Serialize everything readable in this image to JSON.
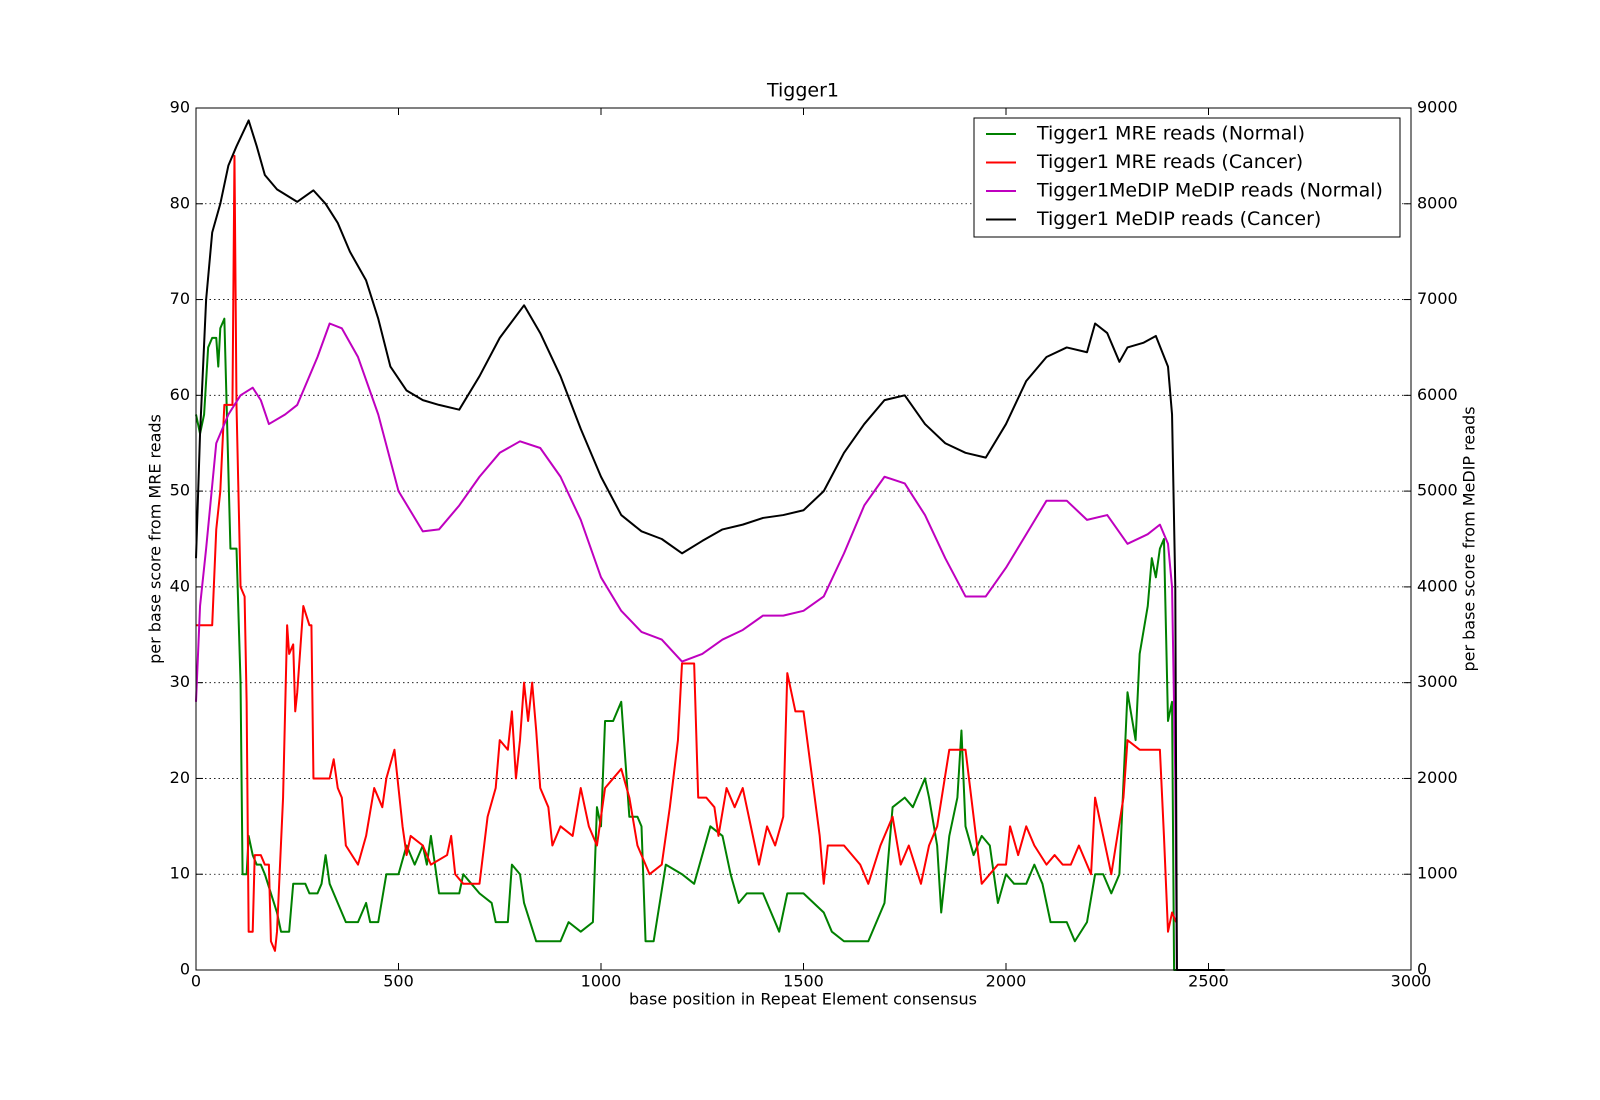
{
  "chart_data": {
    "type": "line",
    "title": "Tigger1",
    "xlabel": "base position in Repeat Element consensus",
    "ylabel": "per base score from MRE reads",
    "y2label": "per base score from MeDIP reads",
    "xlim": [
      0,
      3000
    ],
    "xticks": [
      0,
      500,
      1000,
      1500,
      2000,
      2500,
      3000
    ],
    "ylim": [
      0,
      90
    ],
    "yticks": [
      0,
      10,
      20,
      30,
      40,
      50,
      60,
      70,
      80,
      90
    ],
    "y2lim": [
      0,
      9000
    ],
    "y2ticks": [
      0,
      1000,
      2000,
      3000,
      4000,
      5000,
      6000,
      7000,
      8000,
      9000
    ],
    "grid": true,
    "legend": "upper right",
    "series": [
      {
        "name": "Tigger1 MRE reads (Normal)",
        "color": "#008000",
        "x": [
          0,
          10,
          20,
          30,
          40,
          50,
          55,
          60,
          70,
          75,
          85,
          100,
          110,
          115,
          125,
          130,
          140,
          150,
          160,
          170,
          200,
          210,
          230,
          240,
          270,
          280,
          300,
          310,
          320,
          330,
          350,
          370,
          400,
          420,
          430,
          450,
          470,
          500,
          520,
          540,
          560,
          570,
          580,
          600,
          650,
          660,
          680,
          700,
          730,
          740,
          770,
          780,
          800,
          810,
          840,
          900,
          920,
          950,
          980,
          990,
          1000,
          1010,
          1030,
          1050,
          1070,
          1090,
          1100,
          1110,
          1130,
          1160,
          1200,
          1230,
          1250,
          1270,
          1300,
          1320,
          1340,
          1360,
          1400,
          1420,
          1440,
          1460,
          1500,
          1550,
          1570,
          1600,
          1660,
          1680,
          1700,
          1720,
          1750,
          1770,
          1790,
          1800,
          1810,
          1830,
          1840,
          1860,
          1880,
          1890,
          1900,
          1920,
          1940,
          1960,
          1980,
          2000,
          2020,
          2050,
          2070,
          2090,
          2110,
          2150,
          2170,
          2200,
          2220,
          2240,
          2260,
          2280,
          2300,
          2320,
          2330,
          2350,
          2360,
          2370,
          2380,
          2390,
          2400,
          2410,
          2415,
          2540
        ],
        "values": [
          58,
          56,
          58,
          65,
          66,
          66,
          63,
          67,
          68,
          60,
          44,
          44,
          30,
          10,
          10,
          14,
          12,
          11,
          11,
          10,
          6,
          4,
          4,
          9,
          9,
          8,
          8,
          9,
          12,
          9,
          7,
          5,
          5,
          7,
          5,
          5,
          10,
          10,
          13,
          11,
          13,
          11,
          14,
          8,
          8,
          10,
          9,
          8,
          7,
          5,
          5,
          11,
          10,
          7,
          3,
          3,
          5,
          4,
          5,
          17,
          15,
          26,
          26,
          28,
          16,
          16,
          15,
          3,
          3,
          11,
          10,
          9,
          12,
          15,
          14,
          10,
          7,
          8,
          8,
          6,
          4,
          8,
          8,
          6,
          4,
          3,
          3,
          5,
          7,
          17,
          18,
          17,
          19,
          20,
          18,
          13,
          6,
          14,
          18,
          25,
          15,
          12,
          14,
          13,
          7,
          10,
          9,
          9,
          11,
          9,
          5,
          5,
          3,
          5,
          10,
          10,
          8,
          10,
          29,
          24,
          33,
          38,
          43,
          41,
          44,
          45,
          26,
          28,
          0,
          0
        ]
      },
      {
        "name": "Tigger1 MRE reads (Cancer)",
        "color": "#ff0000",
        "x": [
          0,
          40,
          50,
          60,
          70,
          90,
          95,
          100,
          110,
          120,
          125,
          130,
          140,
          145,
          160,
          170,
          180,
          185,
          195,
          200,
          215,
          225,
          230,
          240,
          245,
          250,
          265,
          280,
          285,
          290,
          330,
          340,
          350,
          360,
          370,
          400,
          420,
          440,
          460,
          470,
          490,
          510,
          520,
          530,
          560,
          580,
          620,
          630,
          640,
          660,
          700,
          720,
          740,
          750,
          770,
          780,
          790,
          800,
          810,
          820,
          830,
          840,
          850,
          870,
          880,
          900,
          930,
          950,
          970,
          990,
          1010,
          1030,
          1050,
          1070,
          1090,
          1120,
          1150,
          1170,
          1190,
          1200,
          1230,
          1240,
          1260,
          1280,
          1290,
          1310,
          1330,
          1350,
          1380,
          1390,
          1410,
          1430,
          1450,
          1460,
          1480,
          1500,
          1540,
          1550,
          1560,
          1600,
          1640,
          1660,
          1690,
          1720,
          1740,
          1760,
          1790,
          1810,
          1830,
          1860,
          1900,
          1920,
          1940,
          1980,
          2000,
          2010,
          2030,
          2050,
          2070,
          2100,
          2120,
          2140,
          2160,
          2180,
          2210,
          2220,
          2240,
          2260,
          2290,
          2300,
          2330,
          2360,
          2380,
          2390,
          2400,
          2410,
          2420
        ],
        "values": [
          36,
          36,
          46,
          50,
          59,
          59,
          85,
          59,
          40,
          39,
          28,
          4,
          4,
          12,
          12,
          11,
          11,
          3,
          2,
          4,
          18,
          36,
          33,
          34,
          27,
          29,
          38,
          36,
          36,
          20,
          20,
          22,
          19,
          18,
          13,
          11,
          14,
          19,
          17,
          20,
          23,
          15,
          12,
          14,
          13,
          11,
          12,
          14,
          10,
          9,
          9,
          16,
          19,
          24,
          23,
          27,
          20,
          24,
          30,
          26,
          30,
          25,
          19,
          17,
          13,
          15,
          14,
          19,
          15,
          13,
          19,
          20,
          21,
          18,
          13,
          10,
          11,
          17,
          24,
          32,
          32,
          18,
          18,
          17,
          14,
          19,
          17,
          19,
          13,
          11,
          15,
          13,
          16,
          31,
          27,
          27,
          14,
          9,
          13,
          13,
          11,
          9,
          13,
          16,
          11,
          13,
          9,
          13,
          15,
          23,
          23,
          16,
          9,
          11,
          11,
          15,
          12,
          15,
          13,
          11,
          12,
          11,
          11,
          13,
          10,
          18,
          14,
          10,
          18,
          24,
          23,
          23,
          23,
          14,
          4,
          6,
          5
        ]
      },
      {
        "name": "Tigger1MeDIP MeDIP reads (Normal)",
        "color": "#bf00bf",
        "axis": "y2",
        "x": [
          0,
          10,
          25,
          50,
          80,
          110,
          140,
          160,
          180,
          220,
          250,
          300,
          330,
          360,
          400,
          450,
          500,
          560,
          600,
          650,
          700,
          750,
          800,
          850,
          900,
          950,
          1000,
          1050,
          1100,
          1150,
          1200,
          1250,
          1300,
          1350,
          1400,
          1450,
          1500,
          1550,
          1600,
          1650,
          1700,
          1750,
          1800,
          1850,
          1900,
          1950,
          2000,
          2050,
          2100,
          2150,
          2200,
          2250,
          2300,
          2350,
          2380,
          2400,
          2410,
          2418,
          2422
        ],
        "values": [
          2800,
          3800,
          4400,
          5500,
          5800,
          6000,
          6080,
          5950,
          5700,
          5800,
          5900,
          6400,
          6750,
          6700,
          6400,
          5800,
          5000,
          4580,
          4600,
          4850,
          5150,
          5400,
          5520,
          5450,
          5150,
          4700,
          4100,
          3750,
          3530,
          3450,
          3220,
          3300,
          3450,
          3550,
          3700,
          3700,
          3750,
          3900,
          4350,
          4850,
          5150,
          5080,
          4750,
          4300,
          3900,
          3900,
          4200,
          4550,
          4900,
          4900,
          4700,
          4750,
          4450,
          4550,
          4650,
          4450,
          4000,
          2000,
          0
        ]
      },
      {
        "name": "Tigger1 MeDIP reads (Cancer)",
        "color": "#000000",
        "axis": "y2",
        "x": [
          0,
          10,
          25,
          40,
          60,
          80,
          100,
          130,
          150,
          170,
          200,
          250,
          290,
          320,
          350,
          380,
          420,
          450,
          480,
          520,
          560,
          600,
          650,
          700,
          750,
          810,
          850,
          900,
          950,
          1000,
          1050,
          1100,
          1150,
          1200,
          1250,
          1300,
          1350,
          1400,
          1450,
          1500,
          1550,
          1600,
          1650,
          1700,
          1750,
          1800,
          1850,
          1900,
          1950,
          2000,
          2050,
          2100,
          2150,
          2200,
          2220,
          2250,
          2280,
          2300,
          2340,
          2370,
          2400,
          2410,
          2418,
          2422,
          2540
        ],
        "values": [
          4300,
          5600,
          7000,
          7700,
          8000,
          8400,
          8600,
          8870,
          8600,
          8300,
          8150,
          8020,
          8140,
          8000,
          7800,
          7500,
          7200,
          6800,
          6300,
          6050,
          5950,
          5900,
          5850,
          6200,
          6600,
          6940,
          6650,
          6200,
          5650,
          5150,
          4750,
          4580,
          4500,
          4350,
          4480,
          4600,
          4650,
          4720,
          4750,
          4800,
          5000,
          5400,
          5700,
          5950,
          6000,
          5700,
          5500,
          5400,
          5350,
          5700,
          6150,
          6400,
          6500,
          6450,
          6750,
          6650,
          6350,
          6500,
          6550,
          6620,
          6300,
          5800,
          4000,
          0,
          0
        ]
      }
    ]
  }
}
